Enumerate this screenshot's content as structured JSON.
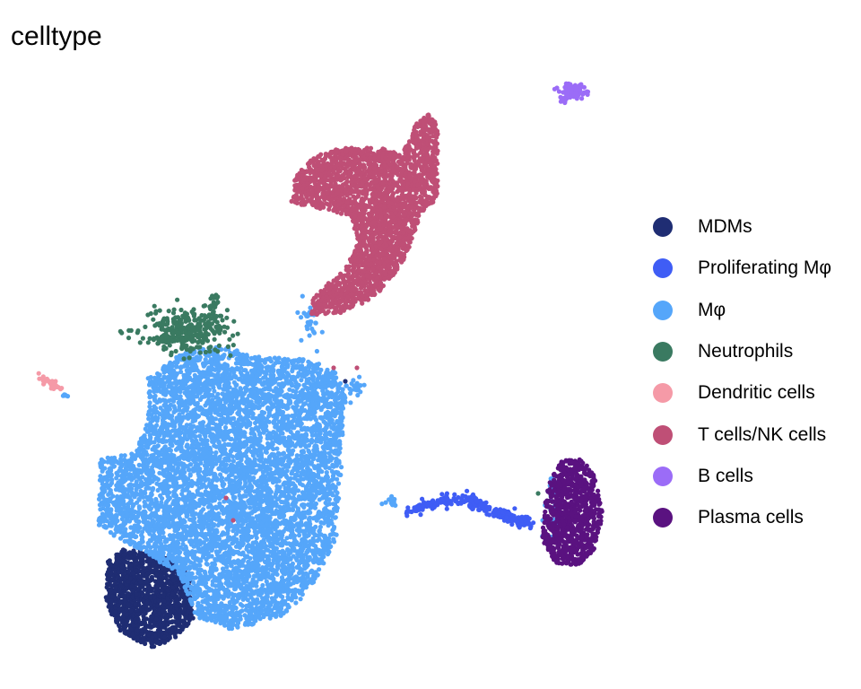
{
  "chart_data": {
    "type": "scatter",
    "title": "celltype",
    "xlabel": "",
    "ylabel": "",
    "grid": false,
    "axes_visible": false,
    "legend_position": "right",
    "series": [
      {
        "name": "MDMs",
        "color": "#1F2D73"
      },
      {
        "name": "Proliferating Mφ",
        "color": "#3F5DF5"
      },
      {
        "name": "Mφ",
        "color": "#55A6FA"
      },
      {
        "name": "Neutrophils",
        "color": "#3A7A61"
      },
      {
        "name": "Dendritic cells",
        "color": "#F59AA7"
      },
      {
        "name": "T cells/NK cells",
        "color": "#BF4F76"
      },
      {
        "name": "B cells",
        "color": "#9B6CF7"
      },
      {
        "name": "Plasma cells",
        "color": "#5A1280"
      }
    ]
  }
}
